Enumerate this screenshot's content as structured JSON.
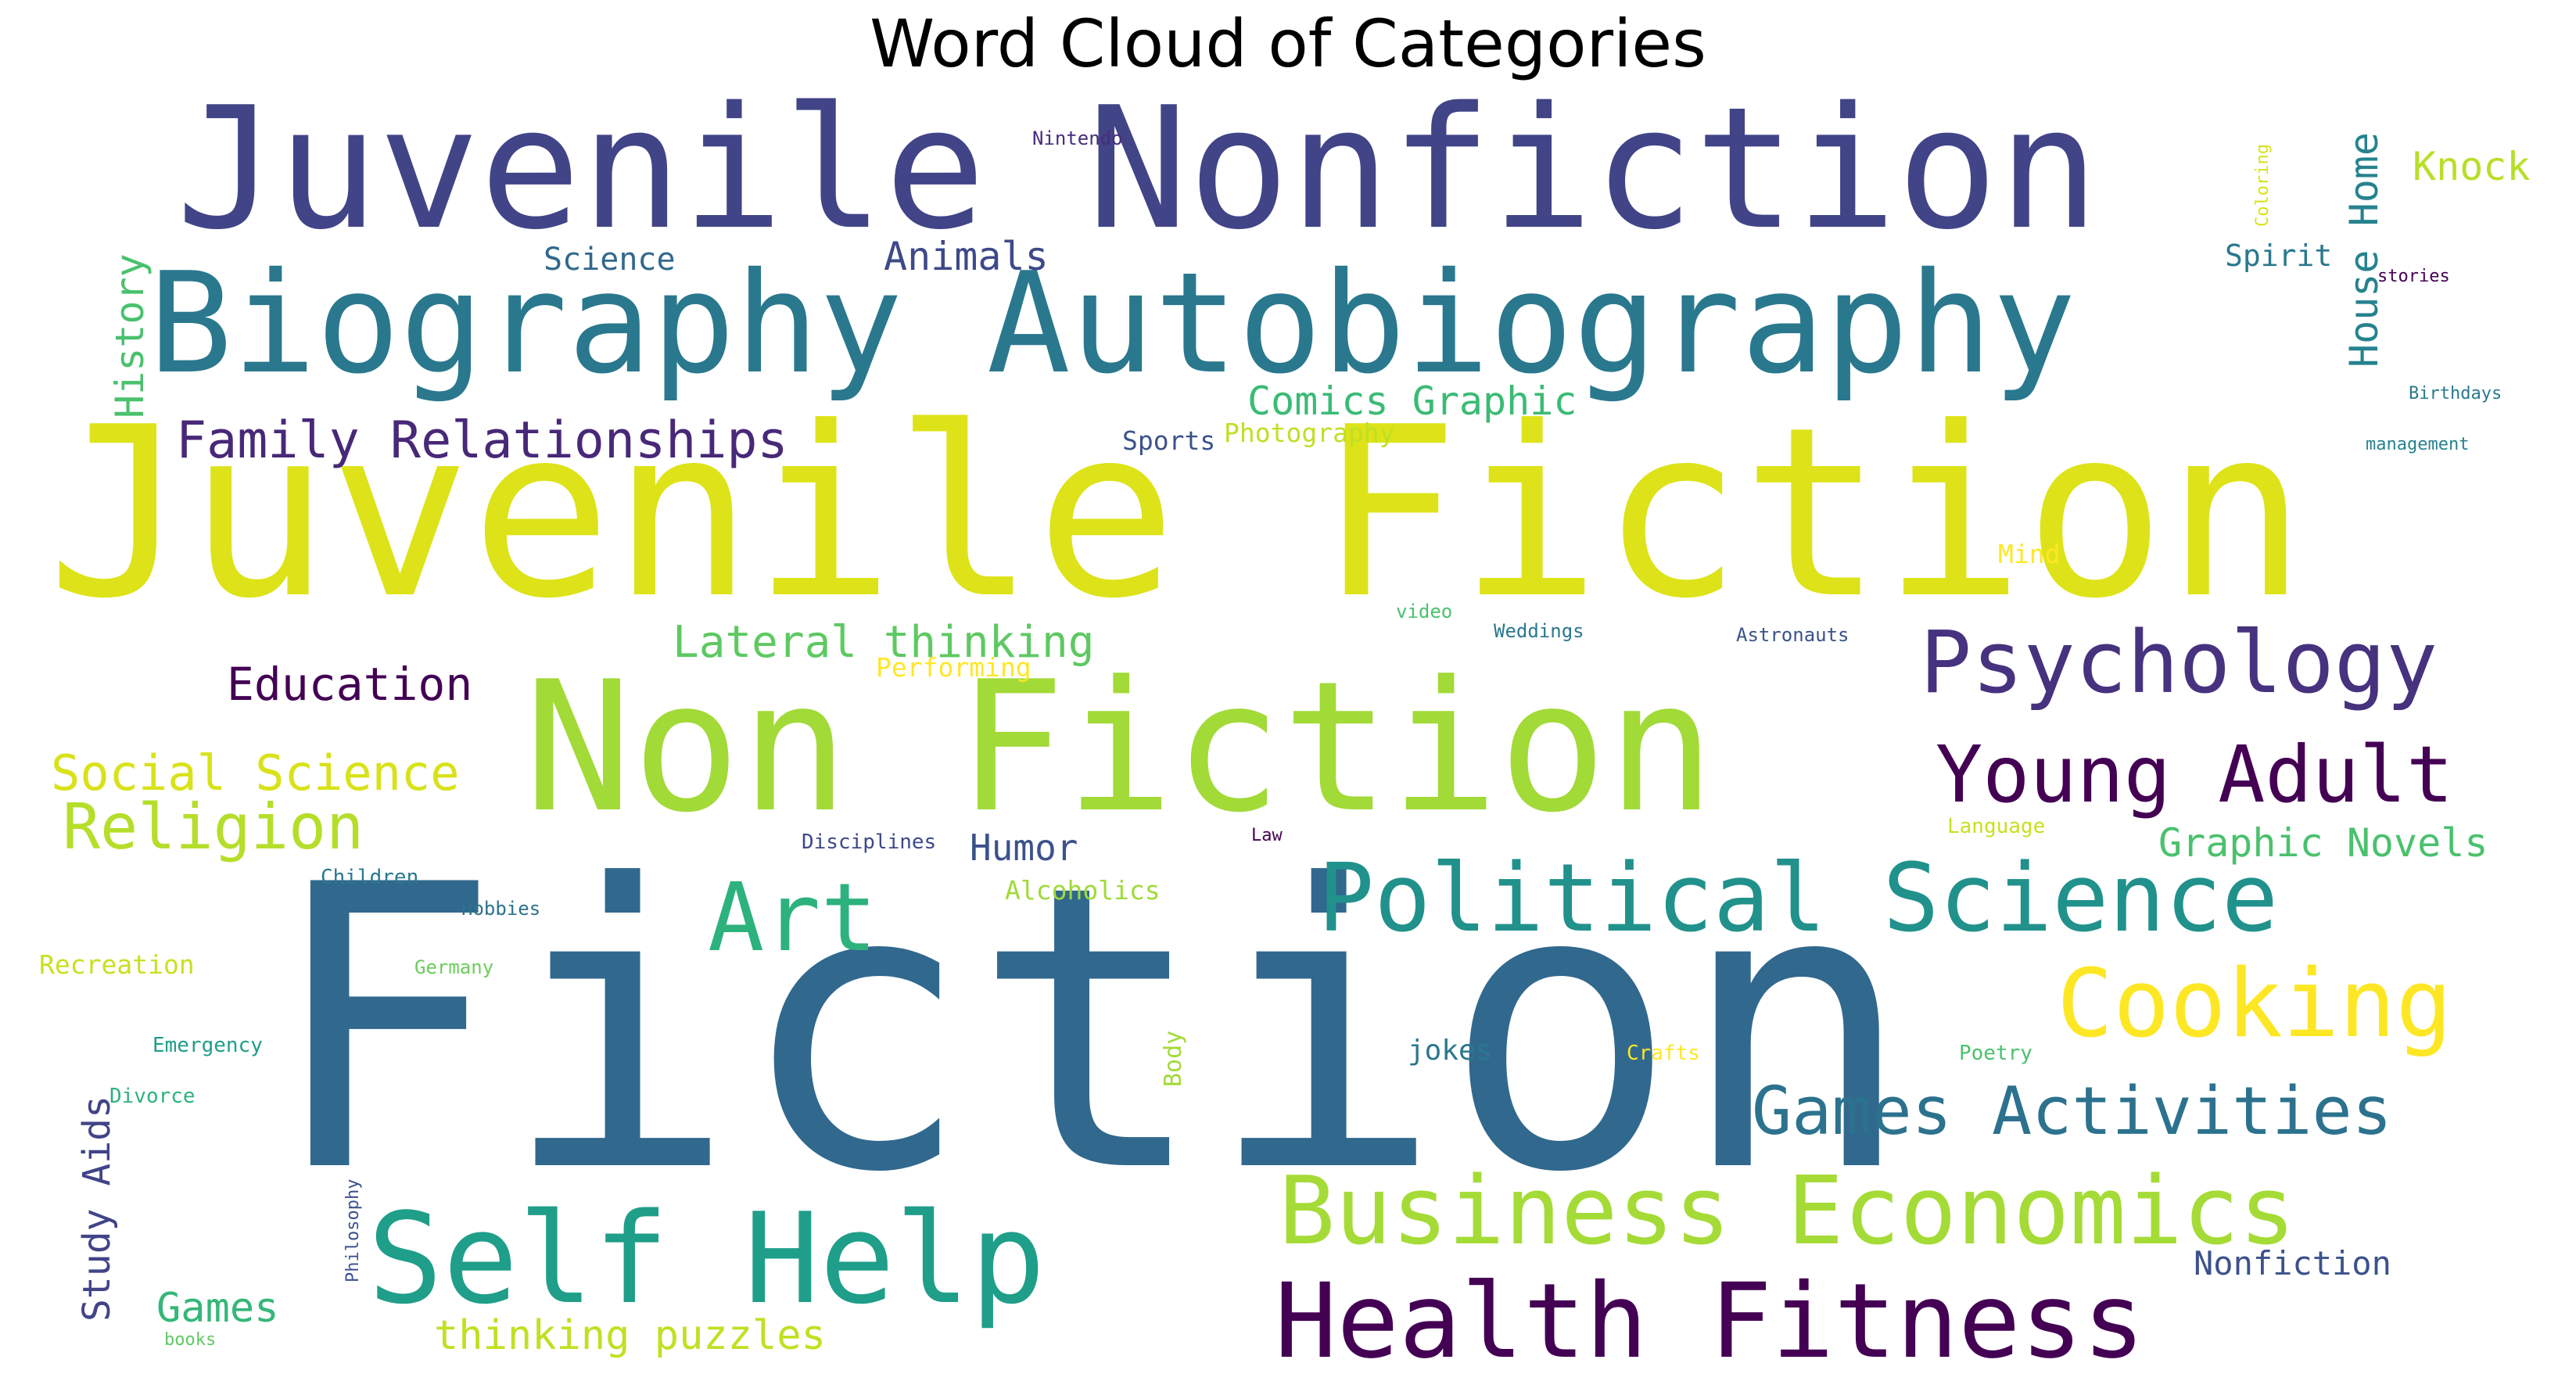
{
  "chart_data": {
    "type": "wordcloud",
    "title": "Word Cloud of Categories",
    "background": "#ffffff",
    "colormap": "viridis",
    "words": [
      {
        "text": "Fiction",
        "weight": 1.0,
        "color": "#31688e",
        "rotate": false
      },
      {
        "text": "Juvenile Fiction",
        "weight": 0.88,
        "color": "#dde318",
        "rotate": false
      },
      {
        "text": "Non Fiction",
        "weight": 0.64,
        "color": "#a2da37",
        "rotate": false
      },
      {
        "text": "Juvenile Nonfiction",
        "weight": 0.6,
        "color": "#414487",
        "rotate": false
      },
      {
        "text": "Biography Autobiography",
        "weight": 0.5,
        "color": "#2a788e",
        "rotate": false
      },
      {
        "text": "Self Help",
        "weight": 0.46,
        "color": "#1f9e89",
        "rotate": false
      },
      {
        "text": "Health Fitness",
        "weight": 0.36,
        "color": "#440154",
        "rotate": false
      },
      {
        "text": "Business Economics",
        "weight": 0.32,
        "color": "#a5db36",
        "rotate": false
      },
      {
        "text": "Art",
        "weight": 0.3,
        "color": "#2db27d",
        "rotate": false
      },
      {
        "text": "Political Science",
        "weight": 0.3,
        "color": "#21918c",
        "rotate": false
      },
      {
        "text": "Cooking",
        "weight": 0.28,
        "color": "#fde725",
        "rotate": false
      },
      {
        "text": "Psychology",
        "weight": 0.24,
        "color": "#46327e",
        "rotate": false
      },
      {
        "text": "Young Adult",
        "weight": 0.23,
        "color": "#440154",
        "rotate": false
      },
      {
        "text": "Games Activities",
        "weight": 0.21,
        "color": "#2c728e",
        "rotate": false
      },
      {
        "text": "Religion",
        "weight": 0.19,
        "color": "#b5de2b",
        "rotate": false
      },
      {
        "text": "Family Relationships",
        "weight": 0.16,
        "color": "#482878",
        "rotate": false
      },
      {
        "text": "Social Science",
        "weight": 0.15,
        "color": "#d8e219",
        "rotate": false
      },
      {
        "text": "Education",
        "weight": 0.14,
        "color": "#440154",
        "rotate": false
      },
      {
        "text": "Lateral thinking",
        "weight": 0.13,
        "color": "#5ec962",
        "rotate": false
      },
      {
        "text": "Comics Graphic",
        "weight": 0.12,
        "color": "#3bbb75",
        "rotate": false
      },
      {
        "text": "Graphic Novels",
        "weight": 0.12,
        "color": "#4ac16d",
        "rotate": false
      },
      {
        "text": "House Home",
        "weight": 0.12,
        "color": "#26828e",
        "rotate": true
      },
      {
        "text": "History",
        "weight": 0.12,
        "color": "#4ac16d",
        "rotate": true
      },
      {
        "text": "thinking puzzles",
        "weight": 0.12,
        "color": "#c2df23",
        "rotate": false
      },
      {
        "text": "Animals",
        "weight": 0.11,
        "color": "#3e4989",
        "rotate": false
      },
      {
        "text": "Knock",
        "weight": 0.11,
        "color": "#b8de29",
        "rotate": false
      },
      {
        "text": "Humor",
        "weight": 0.11,
        "color": "#3b528b",
        "rotate": false
      },
      {
        "text": "Games",
        "weight": 0.11,
        "color": "#35b779",
        "rotate": false
      },
      {
        "text": "Study Aids",
        "weight": 0.11,
        "color": "#414487",
        "rotate": true
      },
      {
        "text": "Nonfiction",
        "weight": 0.1,
        "color": "#3b528b",
        "rotate": false
      },
      {
        "text": "Science",
        "weight": 0.09,
        "color": "#31688e",
        "rotate": false
      },
      {
        "text": "Spirit",
        "weight": 0.08,
        "color": "#2a788e",
        "rotate": false
      },
      {
        "text": "Sports",
        "weight": 0.075,
        "color": "#3b528b",
        "rotate": false
      },
      {
        "text": "Photography",
        "weight": 0.075,
        "color": "#c0df25",
        "rotate": false
      },
      {
        "text": "Performing",
        "weight": 0.075,
        "color": "#fde725",
        "rotate": false
      },
      {
        "text": "Alcoholics",
        "weight": 0.075,
        "color": "#a0da39",
        "rotate": false
      },
      {
        "text": "Recreation",
        "weight": 0.075,
        "color": "#c8e020",
        "rotate": false
      },
      {
        "text": "jokes",
        "weight": 0.075,
        "color": "#2a788e",
        "rotate": false
      },
      {
        "text": "Mind",
        "weight": 0.07,
        "color": "#fde725",
        "rotate": false
      },
      {
        "text": "Body",
        "weight": 0.07,
        "color": "#a2da37",
        "rotate": true
      },
      {
        "text": "Emergency",
        "weight": 0.055,
        "color": "#1f9e89",
        "rotate": false
      },
      {
        "text": "Divorce",
        "weight": 0.055,
        "color": "#2db27d",
        "rotate": false
      },
      {
        "text": "Hobbies",
        "weight": 0.055,
        "color": "#2c728e",
        "rotate": false
      },
      {
        "text": "Germany",
        "weight": 0.05,
        "color": "#6ccd5a",
        "rotate": false
      },
      {
        "text": "Disciplines",
        "weight": 0.055,
        "color": "#3e4989",
        "rotate": false
      },
      {
        "text": "Children",
        "weight": 0.055,
        "color": "#2a788e",
        "rotate": false
      },
      {
        "text": "Crafts",
        "weight": 0.055,
        "color": "#fde725",
        "rotate": false
      },
      {
        "text": "Poetry",
        "weight": 0.055,
        "color": "#4ac16d",
        "rotate": false
      },
      {
        "text": "Language",
        "weight": 0.05,
        "color": "#c8e020",
        "rotate": false
      },
      {
        "text": "Law",
        "weight": 0.045,
        "color": "#440154",
        "rotate": false
      },
      {
        "text": "Weddings",
        "weight": 0.05,
        "color": "#2a788e",
        "rotate": false
      },
      {
        "text": "Astronauts",
        "weight": 0.05,
        "color": "#3b528b",
        "rotate": false
      },
      {
        "text": "video",
        "weight": 0.05,
        "color": "#4ac16d",
        "rotate": false
      },
      {
        "text": "Nintendo",
        "weight": 0.05,
        "color": "#472d7b",
        "rotate": false
      },
      {
        "text": "Coloring",
        "weight": 0.045,
        "color": "#d8e219",
        "rotate": true
      },
      {
        "text": "stories",
        "weight": 0.045,
        "color": "#440154",
        "rotate": false
      },
      {
        "text": "Birthdays",
        "weight": 0.045,
        "color": "#2a788e",
        "rotate": false
      },
      {
        "text": "management",
        "weight": 0.045,
        "color": "#26828e",
        "rotate": false
      },
      {
        "text": "Philosophy",
        "weight": 0.045,
        "color": "#3b528b",
        "rotate": true
      },
      {
        "text": "books",
        "weight": 0.045,
        "color": "#5ec962",
        "rotate": false
      }
    ]
  }
}
